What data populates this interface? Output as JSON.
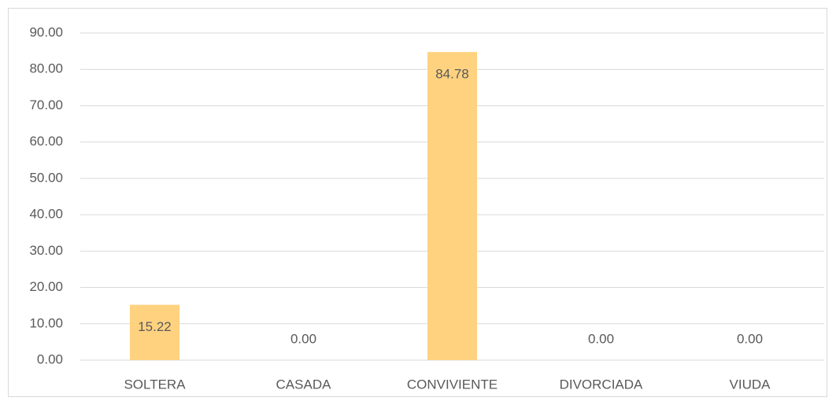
{
  "chart_data": {
    "type": "bar",
    "categories": [
      "SOLTERA",
      "CASADA",
      "CONVIVIENTE",
      "DIVORCIADA",
      "VIUDA"
    ],
    "values": [
      15.22,
      0,
      84.78,
      0,
      0
    ],
    "value_labels": [
      "15.22",
      "0.00",
      "84.78",
      "0.00",
      "0.00"
    ],
    "color": "#ffd280",
    "ylim": [
      0,
      90
    ],
    "yticks": [
      {
        "value": 0,
        "label": "0.00"
      },
      {
        "value": 10,
        "label": "10.00"
      },
      {
        "value": 20,
        "label": "20.00"
      },
      {
        "value": 30,
        "label": "30.00"
      },
      {
        "value": 40,
        "label": "40.00"
      },
      {
        "value": 50,
        "label": "50.00"
      },
      {
        "value": 60,
        "label": "60.00"
      },
      {
        "value": 70,
        "label": "70.00"
      },
      {
        "value": 80,
        "label": "80.00"
      },
      {
        "value": 90,
        "label": "90.00"
      }
    ],
    "grid": true
  }
}
